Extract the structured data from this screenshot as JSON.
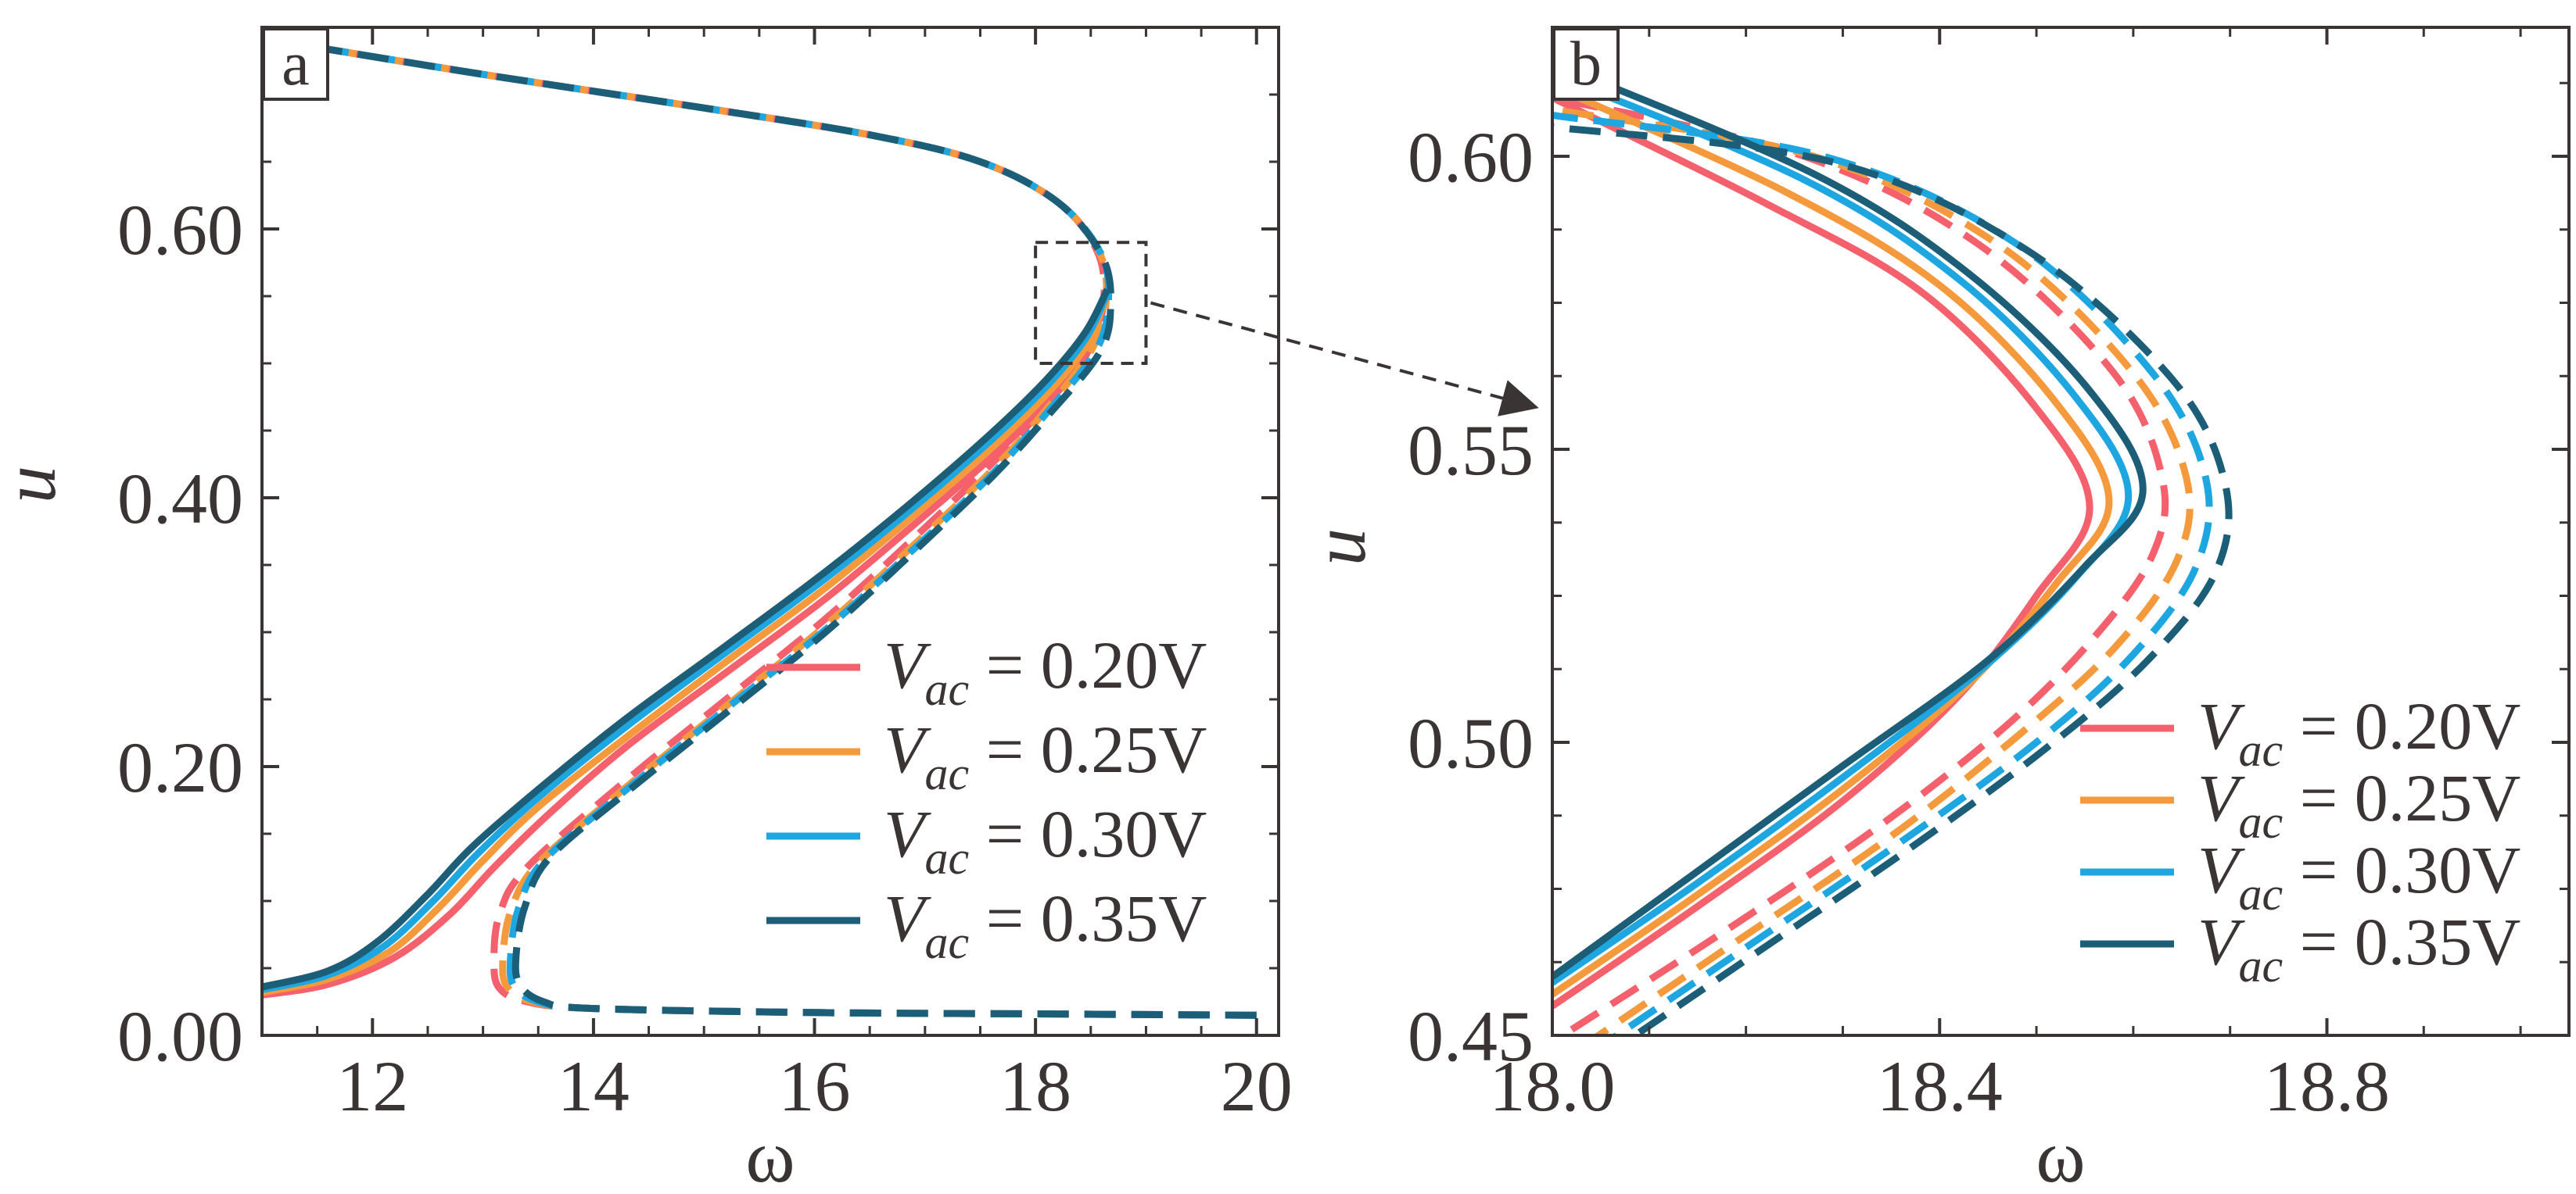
{
  "colors": {
    "axis": "#3a3434",
    "series": [
      "#f4606c",
      "#f59a3c",
      "#1ea6e0",
      "#1c5e78"
    ]
  },
  "chart_data": [
    {
      "type": "line",
      "panel_label": "a",
      "xlabel": "ω",
      "ylabel": "u",
      "xlim": [
        11.0,
        20.2
      ],
      "ylim": [
        0.0,
        0.75
      ],
      "xticks": [
        12,
        14,
        16,
        18,
        20
      ],
      "xtick_labels": [
        "12",
        "14",
        "16",
        "18",
        "20"
      ],
      "yticks": [
        0.0,
        0.2,
        0.4,
        0.6
      ],
      "ytick_labels": [
        "0.00",
        "0.20",
        "0.40",
        "0.60"
      ],
      "legend": {
        "position": "lower-right",
        "entries": [
          {
            "var": "V",
            "sub": "ac",
            "eq": " = 0.20V"
          },
          {
            "var": "V",
            "sub": "ac",
            "eq": " = 0.25V"
          },
          {
            "var": "V",
            "sub": "ac",
            "eq": " = 0.30V"
          },
          {
            "var": "V",
            "sub": "ac",
            "eq": " = 0.35V"
          }
        ]
      },
      "zoom_box": {
        "x": [
          18.0,
          19.0
        ],
        "y": [
          0.5,
          0.59
        ]
      },
      "series": [
        {
          "name": "Vac = 0.20V",
          "style": "solid",
          "x": [
            11.0,
            11.6,
            12.2,
            12.7,
            13.1,
            13.6,
            14.3,
            15.2,
            16.1,
            16.9,
            17.6,
            18.1,
            18.45,
            18.6
          ],
          "y": [
            0.03,
            0.038,
            0.058,
            0.09,
            0.125,
            0.165,
            0.215,
            0.27,
            0.325,
            0.38,
            0.43,
            0.47,
            0.505,
            0.54
          ]
        },
        {
          "name": "Vac = 0.20V",
          "style": "dashed",
          "x": [
            20.0,
            18.0,
            16.0,
            14.0,
            13.4,
            13.15,
            13.1,
            13.15,
            13.4,
            14.3,
            15.2,
            16.1,
            16.9,
            17.6,
            18.1,
            18.5,
            18.62,
            18.55,
            18.2,
            17.5,
            16.5,
            15.0,
            13.0,
            11.5
          ],
          "y": [
            0.015,
            0.016,
            0.017,
            0.02,
            0.025,
            0.035,
            0.055,
            0.09,
            0.125,
            0.19,
            0.25,
            0.31,
            0.37,
            0.425,
            0.47,
            0.515,
            0.55,
            0.585,
            0.62,
            0.65,
            0.67,
            0.69,
            0.715,
            0.735
          ]
        },
        {
          "name": "Vac = 0.25V",
          "style": "solid",
          "x": [
            11.0,
            11.6,
            12.15,
            12.6,
            13.0,
            13.5,
            14.3,
            15.2,
            16.1,
            16.9,
            17.6,
            18.1,
            18.45,
            18.62
          ],
          "y": [
            0.032,
            0.042,
            0.062,
            0.095,
            0.13,
            0.17,
            0.222,
            0.278,
            0.333,
            0.387,
            0.437,
            0.477,
            0.512,
            0.545
          ]
        },
        {
          "name": "Vac = 0.25V",
          "style": "dashed",
          "x": [
            20.0,
            18.0,
            16.0,
            14.0,
            13.45,
            13.22,
            13.18,
            13.25,
            13.5,
            14.3,
            15.2,
            16.1,
            16.9,
            17.6,
            18.1,
            18.52,
            18.64,
            18.57,
            18.2,
            17.5,
            16.5,
            15.0,
            13.0,
            11.5
          ],
          "y": [
            0.015,
            0.016,
            0.017,
            0.02,
            0.025,
            0.036,
            0.056,
            0.092,
            0.128,
            0.185,
            0.245,
            0.305,
            0.365,
            0.42,
            0.466,
            0.512,
            0.548,
            0.584,
            0.62,
            0.65,
            0.67,
            0.69,
            0.715,
            0.735
          ]
        },
        {
          "name": "Vac = 0.30V",
          "style": "solid",
          "x": [
            11.0,
            11.6,
            12.1,
            12.55,
            12.95,
            13.5,
            14.3,
            15.2,
            16.1,
            16.9,
            17.6,
            18.1,
            18.45,
            18.64
          ],
          "y": [
            0.034,
            0.045,
            0.066,
            0.1,
            0.135,
            0.177,
            0.23,
            0.285,
            0.34,
            0.393,
            0.443,
            0.483,
            0.518,
            0.55
          ]
        },
        {
          "name": "Vac = 0.30V",
          "style": "dashed",
          "x": [
            20.0,
            18.0,
            16.0,
            14.0,
            13.5,
            13.28,
            13.25,
            13.32,
            13.55,
            14.3,
            15.2,
            16.1,
            16.9,
            17.6,
            18.1,
            18.55,
            18.66,
            18.59,
            18.2,
            17.5,
            16.5,
            15.0,
            13.0,
            11.5
          ],
          "y": [
            0.015,
            0.016,
            0.017,
            0.02,
            0.025,
            0.037,
            0.058,
            0.094,
            0.13,
            0.183,
            0.243,
            0.302,
            0.362,
            0.417,
            0.463,
            0.51,
            0.546,
            0.582,
            0.62,
            0.65,
            0.67,
            0.69,
            0.715,
            0.735
          ]
        },
        {
          "name": "Vac = 0.35V",
          "style": "solid",
          "x": [
            11.0,
            11.6,
            12.05,
            12.5,
            12.9,
            13.5,
            14.3,
            15.2,
            16.1,
            16.9,
            17.6,
            18.1,
            18.45,
            18.65
          ],
          "y": [
            0.036,
            0.048,
            0.07,
            0.105,
            0.14,
            0.183,
            0.236,
            0.29,
            0.345,
            0.398,
            0.448,
            0.488,
            0.523,
            0.555
          ]
        },
        {
          "name": "Vac = 0.35V",
          "style": "dashed",
          "x": [
            20.0,
            18.0,
            16.0,
            14.0,
            13.55,
            13.33,
            13.3,
            13.38,
            13.6,
            14.3,
            15.2,
            16.1,
            16.9,
            17.6,
            18.1,
            18.58,
            18.68,
            18.6,
            18.2,
            17.5,
            16.5,
            15.0,
            13.0,
            11.5
          ],
          "y": [
            0.015,
            0.016,
            0.017,
            0.02,
            0.025,
            0.038,
            0.06,
            0.096,
            0.132,
            0.181,
            0.24,
            0.3,
            0.36,
            0.415,
            0.46,
            0.508,
            0.544,
            0.58,
            0.62,
            0.65,
            0.67,
            0.69,
            0.715,
            0.735
          ]
        }
      ]
    },
    {
      "type": "line",
      "panel_label": "b",
      "xlabel": "ω",
      "ylabel": "u",
      "xlim": [
        18.0,
        19.05
      ],
      "ylim": [
        0.45,
        0.622
      ],
      "xticks": [
        18.0,
        18.4,
        18.8
      ],
      "xtick_labels": [
        "18.0",
        "18.4",
        "18.8"
      ],
      "yticks": [
        0.45,
        0.5,
        0.55,
        0.6
      ],
      "ytick_labels": [
        "0.45",
        "0.50",
        "0.55",
        "0.60"
      ],
      "legend": {
        "position": "lower-right",
        "entries": [
          {
            "var": "V",
            "sub": "ac",
            "eq": " = 0.20V"
          },
          {
            "var": "V",
            "sub": "ac",
            "eq": " = 0.25V"
          },
          {
            "var": "V",
            "sub": "ac",
            "eq": " = 0.30V"
          },
          {
            "var": "V",
            "sub": "ac",
            "eq": " = 0.35V"
          }
        ]
      },
      "series": [
        {
          "name": "Vac = 0.20V",
          "style": "solid",
          "x": [
            18.0,
            18.15,
            18.3,
            18.42,
            18.5,
            18.555,
            18.5,
            18.38,
            18.22,
            18.0
          ],
          "y": [
            0.455,
            0.472,
            0.49,
            0.508,
            0.525,
            0.54,
            0.557,
            0.577,
            0.592,
            0.61
          ]
        },
        {
          "name": "Vac = 0.20V",
          "style": "dashed",
          "x": [
            18.02,
            18.18,
            18.34,
            18.47,
            18.56,
            18.62,
            18.63,
            18.58,
            18.44,
            18.26,
            18.0
          ],
          "y": [
            0.451,
            0.468,
            0.486,
            0.503,
            0.518,
            0.532,
            0.545,
            0.563,
            0.585,
            0.6,
            0.61
          ]
        },
        {
          "name": "Vac = 0.25V",
          "style": "solid",
          "x": [
            18.0,
            18.15,
            18.3,
            18.43,
            18.52,
            18.575,
            18.52,
            18.4,
            18.24,
            18.0
          ],
          "y": [
            0.457,
            0.474,
            0.492,
            0.51,
            0.527,
            0.541,
            0.558,
            0.578,
            0.594,
            0.612
          ]
        },
        {
          "name": "Vac = 0.25V",
          "style": "dashed",
          "x": [
            18.03,
            18.19,
            18.35,
            18.48,
            18.58,
            18.645,
            18.655,
            18.6,
            18.46,
            18.27,
            18.0
          ],
          "y": [
            0.448,
            0.466,
            0.484,
            0.501,
            0.516,
            0.531,
            0.545,
            0.563,
            0.585,
            0.6,
            0.608
          ]
        },
        {
          "name": "Vac = 0.30V",
          "style": "solid",
          "x": [
            18.0,
            18.15,
            18.3,
            18.44,
            18.54,
            18.595,
            18.54,
            18.42,
            18.26,
            18.0
          ],
          "y": [
            0.459,
            0.476,
            0.494,
            0.512,
            0.528,
            0.542,
            0.559,
            0.579,
            0.596,
            0.614
          ]
        },
        {
          "name": "Vac = 0.30V",
          "style": "dashed",
          "x": [
            18.04,
            18.2,
            18.36,
            18.5,
            18.6,
            18.665,
            18.675,
            18.62,
            18.48,
            18.28,
            18.0
          ],
          "y": [
            0.447,
            0.465,
            0.483,
            0.5,
            0.515,
            0.53,
            0.545,
            0.563,
            0.585,
            0.6,
            0.607
          ]
        },
        {
          "name": "Vac = 0.35V",
          "style": "solid",
          "x": [
            18.0,
            18.15,
            18.3,
            18.45,
            18.55,
            18.61,
            18.555,
            18.43,
            18.27,
            18.0
          ],
          "y": [
            0.46,
            0.478,
            0.496,
            0.514,
            0.53,
            0.543,
            0.56,
            0.58,
            0.597,
            0.616
          ]
        },
        {
          "name": "Vac = 0.35V",
          "style": "dashed",
          "x": [
            18.05,
            18.21,
            18.37,
            18.51,
            18.615,
            18.685,
            18.695,
            18.64,
            18.49,
            18.29,
            18.0
          ],
          "y": [
            0.446,
            0.464,
            0.482,
            0.499,
            0.514,
            0.529,
            0.544,
            0.562,
            0.584,
            0.599,
            0.605
          ]
        }
      ]
    }
  ]
}
